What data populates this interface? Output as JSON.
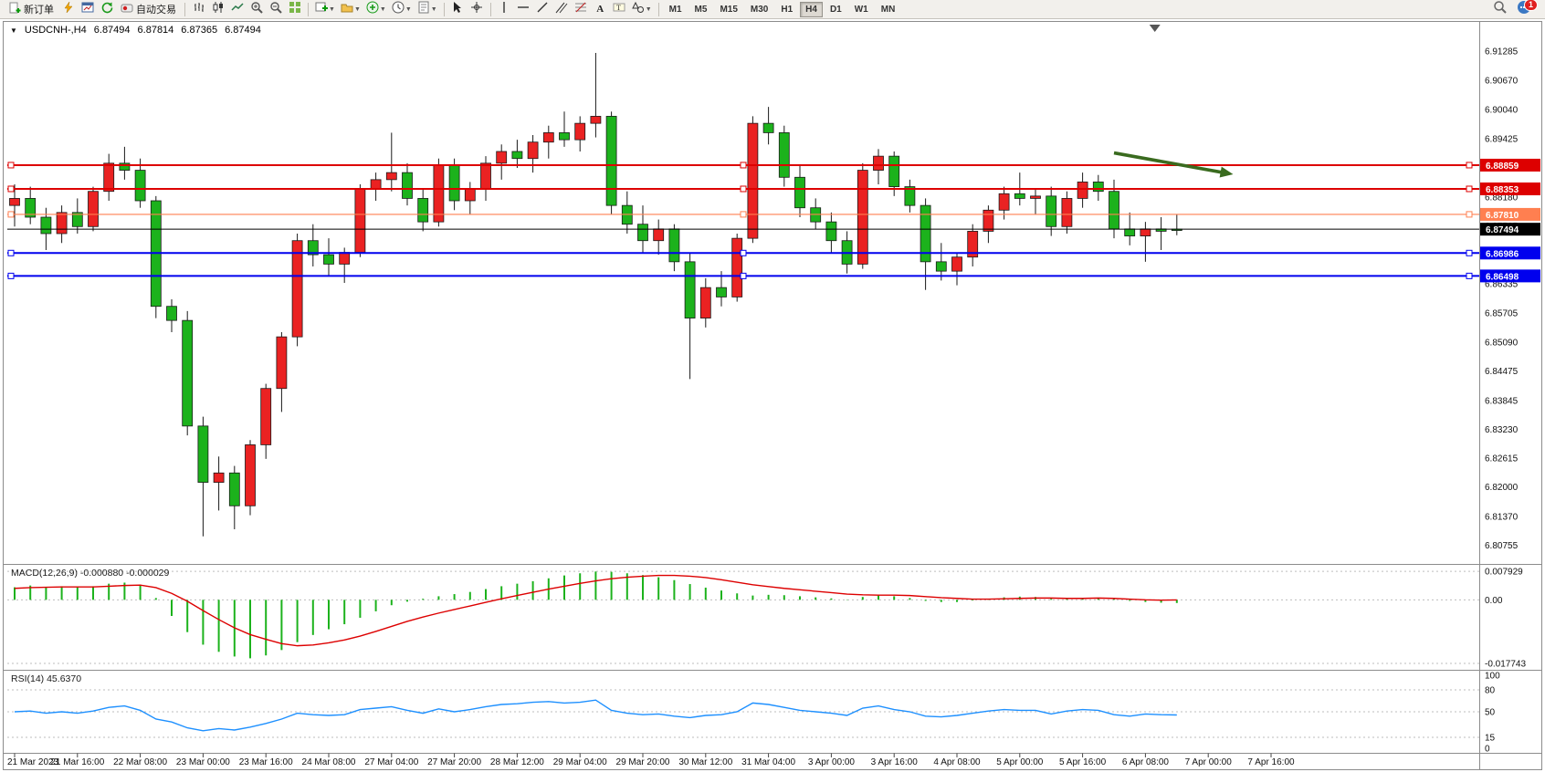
{
  "toolbar": {
    "new_order_label": "新订单",
    "autotrading_label": "自动交易",
    "timeframes": [
      "M1",
      "M5",
      "M15",
      "M30",
      "H1",
      "H4",
      "D1",
      "W1",
      "MN"
    ],
    "active_timeframe": "H4",
    "notification_count": "1"
  },
  "chart_header": {
    "symbol": "USDCNH-,H4",
    "open": "6.87494",
    "high": "6.87814",
    "low": "6.87365",
    "close": "6.87494"
  },
  "chart_data": {
    "type": "candlestick",
    "symbol": "USDCNH-",
    "timeframe": "H4",
    "up_color": "#ea2222",
    "down_color": "#1cb21c",
    "ylim": [
      6.804,
      6.916
    ],
    "price_axis_labels": [
      "6.91285",
      "6.90670",
      "6.90040",
      "6.89425",
      "6.88810",
      "6.88180",
      "6.87565",
      "6.86950",
      "6.86335",
      "6.85705",
      "6.85090",
      "6.84475",
      "6.83845",
      "6.83230",
      "6.82615",
      "6.82000",
      "6.81370",
      "6.80755"
    ],
    "candles": [
      [
        6.88,
        6.8845,
        6.8755,
        6.8815
      ],
      [
        6.8815,
        6.884,
        6.876,
        6.8775
      ],
      [
        6.8775,
        6.8795,
        6.8705,
        6.874
      ],
      [
        6.874,
        6.88,
        6.872,
        6.8785
      ],
      [
        6.8785,
        6.8815,
        6.874,
        6.8755
      ],
      [
        6.8755,
        6.884,
        6.8745,
        6.883
      ],
      [
        6.883,
        6.891,
        6.881,
        6.889
      ],
      [
        6.889,
        6.8925,
        6.8855,
        6.8875
      ],
      [
        6.8875,
        6.89,
        6.8795,
        6.881
      ],
      [
        6.881,
        6.882,
        6.856,
        6.8585
      ],
      [
        6.8585,
        6.86,
        6.853,
        6.8555
      ],
      [
        6.8555,
        6.8575,
        6.831,
        6.833
      ],
      [
        6.833,
        6.835,
        6.8095,
        6.821
      ],
      [
        6.821,
        6.8265,
        6.815,
        6.823
      ],
      [
        6.823,
        6.8245,
        6.811,
        6.816
      ],
      [
        6.816,
        6.83,
        6.814,
        6.829
      ],
      [
        6.829,
        6.842,
        6.826,
        6.841
      ],
      [
        6.841,
        6.853,
        6.836,
        6.852
      ],
      [
        6.852,
        6.874,
        6.85,
        6.8725
      ],
      [
        6.8725,
        6.876,
        6.867,
        6.8695
      ],
      [
        6.8695,
        6.873,
        6.865,
        6.8675
      ],
      [
        6.8675,
        6.871,
        6.8635,
        6.87
      ],
      [
        6.87,
        6.8845,
        6.869,
        6.8835
      ],
      [
        6.8835,
        6.887,
        6.881,
        6.8855
      ],
      [
        6.8855,
        6.8955,
        6.883,
        6.887
      ],
      [
        6.887,
        6.889,
        6.88,
        6.8815
      ],
      [
        6.8815,
        6.8835,
        6.8745,
        6.8765
      ],
      [
        6.8765,
        6.89,
        6.8755,
        6.8885
      ],
      [
        6.8885,
        6.89,
        6.879,
        6.881
      ],
      [
        6.881,
        6.885,
        6.878,
        6.8835
      ],
      [
        6.8835,
        6.8905,
        6.881,
        6.889
      ],
      [
        6.889,
        6.893,
        6.8855,
        6.8915
      ],
      [
        6.8915,
        6.894,
        6.888,
        6.89
      ],
      [
        6.89,
        6.895,
        6.887,
        6.8935
      ],
      [
        6.8935,
        6.897,
        6.89,
        6.8955
      ],
      [
        6.8955,
        6.9,
        6.8925,
        6.894
      ],
      [
        6.894,
        6.899,
        6.8915,
        6.8975
      ],
      [
        6.8975,
        6.9125,
        6.8945,
        6.899
      ],
      [
        6.899,
        6.9,
        6.878,
        6.88
      ],
      [
        6.88,
        6.883,
        6.874,
        6.876
      ],
      [
        6.876,
        6.88,
        6.87,
        6.8725
      ],
      [
        6.8725,
        6.877,
        6.8695,
        6.875
      ],
      [
        6.875,
        6.876,
        6.866,
        6.868
      ],
      [
        6.868,
        6.87,
        6.843,
        6.856
      ],
      [
        6.856,
        6.8645,
        6.854,
        6.8625
      ],
      [
        6.8625,
        6.866,
        6.8585,
        6.8605
      ],
      [
        6.8605,
        6.874,
        6.8595,
        6.873
      ],
      [
        6.873,
        6.899,
        6.872,
        6.8975
      ],
      [
        6.8975,
        6.901,
        6.893,
        6.8955
      ],
      [
        6.8955,
        6.897,
        6.884,
        6.886
      ],
      [
        6.886,
        6.8885,
        6.8775,
        6.8795
      ],
      [
        6.8795,
        6.8815,
        6.875,
        6.8765
      ],
      [
        6.8765,
        6.8785,
        6.87,
        6.8725
      ],
      [
        6.8725,
        6.8745,
        6.8655,
        6.8675
      ],
      [
        6.8675,
        6.889,
        6.8665,
        6.8875
      ],
      [
        6.8875,
        6.892,
        6.8845,
        6.8905
      ],
      [
        6.8905,
        6.8915,
        6.882,
        6.884
      ],
      [
        6.884,
        6.8855,
        6.8785,
        6.88
      ],
      [
        6.88,
        6.8815,
        6.862,
        6.868
      ],
      [
        6.868,
        6.872,
        6.864,
        6.866
      ],
      [
        6.866,
        6.87,
        6.863,
        6.869
      ],
      [
        6.869,
        6.876,
        6.867,
        6.8745
      ],
      [
        6.8745,
        6.88,
        6.872,
        6.879
      ],
      [
        6.879,
        6.884,
        6.877,
        6.8825
      ],
      [
        6.8825,
        6.887,
        6.88,
        6.8815
      ],
      [
        6.8815,
        6.8835,
        6.878,
        6.882
      ],
      [
        6.882,
        6.884,
        6.8735,
        6.8755
      ],
      [
        6.8755,
        6.883,
        6.874,
        6.8815
      ],
      [
        6.8815,
        6.887,
        6.8795,
        6.885
      ],
      [
        6.885,
        6.8865,
        6.881,
        6.883
      ],
      [
        6.883,
        6.8855,
        6.873,
        6.875
      ],
      [
        6.875,
        6.8785,
        6.8715,
        6.8735
      ],
      [
        6.8735,
        6.8765,
        6.868,
        6.875
      ],
      [
        6.875,
        6.8775,
        6.8705,
        6.8745
      ],
      [
        6.87494,
        6.87814,
        6.87365,
        6.87494
      ]
    ],
    "hlines": [
      {
        "price": 6.88859,
        "label": "6.88859",
        "color": "#dd0000",
        "width": 2,
        "handles": true
      },
      {
        "price": 6.88353,
        "label": "6.88353",
        "color": "#dd0000",
        "width": 2,
        "handles": true
      },
      {
        "price": 6.8781,
        "label": "6.87810",
        "color": "#ff7f50",
        "width": 1.2,
        "handles": true
      },
      {
        "price": 6.87494,
        "label": "6.87494",
        "color": "#000000",
        "width": 1,
        "handles": false
      },
      {
        "price": 6.86986,
        "label": "6.86986",
        "color": "#0000ee",
        "width": 2,
        "handles": true
      },
      {
        "price": 6.86498,
        "label": "6.86498",
        "color": "#0000ee",
        "width": 2,
        "handles": true
      }
    ],
    "trend_arrow": {
      "from_index": 70,
      "from_price": 6.8912,
      "to_index": 77.3,
      "to_price": 6.8868,
      "color": "#3a6b1f"
    },
    "shift_marker_index": 72.6,
    "indicators": [
      {
        "name": "MACD",
        "label": "MACD(12,26,9) -0.000880 -0.000029",
        "axis_labels": [
          {
            "text": "0.007929",
            "value": 0.007929
          },
          {
            "text": "0.00",
            "value": 0
          },
          {
            "text": "-0.017743",
            "value": -0.017743
          }
        ],
        "ylim": [
          -0.019,
          0.0095
        ],
        "hist_color": "#1cb21c",
        "signal_color": "#dd0000",
        "histogram": [
          0.0035,
          0.004,
          0.0036,
          0.0038,
          0.0035,
          0.0038,
          0.0045,
          0.0048,
          0.0042,
          0.0005,
          -0.0045,
          -0.009,
          -0.0125,
          -0.0145,
          -0.0158,
          -0.0163,
          -0.0155,
          -0.014,
          -0.0118,
          -0.0098,
          -0.0082,
          -0.0068,
          -0.005,
          -0.0032,
          -0.0015,
          -0.0005,
          0.0003,
          0.001,
          0.0016,
          0.0022,
          0.003,
          0.0038,
          0.0045,
          0.0052,
          0.006,
          0.0068,
          0.0074,
          0.0079,
          0.0078,
          0.0074,
          0.0069,
          0.0063,
          0.0055,
          0.0044,
          0.0034,
          0.0026,
          0.0018,
          0.0012,
          0.0014,
          0.0013,
          0.001,
          0.0007,
          0.0004,
          0.0001,
          0.0008,
          0.0012,
          0.001,
          0.0005,
          -0.0003,
          -0.0006,
          -0.0006,
          -0.0002,
          0.0003,
          0.0007,
          0.0009,
          0.0008,
          0.0003,
          0.0002,
          0.0005,
          0.0006,
          0.0002,
          -0.0003,
          -0.0006,
          -0.0008,
          -0.00088
        ],
        "signal": [
          0.0032,
          0.0034,
          0.0035,
          0.0036,
          0.0036,
          0.0036,
          0.0038,
          0.004,
          0.0041,
          0.0034,
          0.0018,
          -0.0004,
          -0.003,
          -0.0055,
          -0.0078,
          -0.0097,
          -0.011,
          -0.0122,
          -0.0128,
          -0.0126,
          -0.012,
          -0.0112,
          -0.0101,
          -0.0088,
          -0.0074,
          -0.006,
          -0.0048,
          -0.0037,
          -0.0027,
          -0.0017,
          -0.0007,
          0.0003,
          0.0012,
          0.0021,
          0.003,
          0.0038,
          0.0046,
          0.0053,
          0.0059,
          0.0063,
          0.0066,
          0.0068,
          0.0068,
          0.0066,
          0.0062,
          0.0056,
          0.0049,
          0.0042,
          0.0037,
          0.0032,
          0.0028,
          0.0024,
          0.002,
          0.0016,
          0.0014,
          0.0013,
          0.0013,
          0.0012,
          0.0009,
          0.0006,
          0.0004,
          0.0002,
          0.0002,
          0.0003,
          0.0004,
          0.0005,
          0.0005,
          0.0004,
          0.0004,
          0.0005,
          0.0004,
          0.0002,
          0.0,
          -0.0001,
          -2.9e-05
        ]
      },
      {
        "name": "RSI",
        "label": "RSI(14) 45.6370",
        "axis_labels": [
          {
            "text": "100",
            "value": 100
          },
          {
            "text": "80",
            "value": 80
          },
          {
            "text": "50",
            "value": 50
          },
          {
            "text": "15",
            "value": 15
          },
          {
            "text": "0",
            "value": 0
          }
        ],
        "levels": [
          80,
          50,
          15
        ],
        "ylim": [
          0,
          100
        ],
        "color": "#1e90ff",
        "values": [
          50,
          51,
          48,
          50,
          48,
          51,
          56,
          58,
          52,
          40,
          36,
          28,
          24,
          27,
          25,
          29,
          34,
          40,
          48,
          46,
          45,
          46,
          53,
          55,
          57,
          52,
          48,
          54,
          50,
          53,
          57,
          60,
          61,
          63,
          64,
          62,
          63,
          66,
          52,
          48,
          46,
          47,
          44,
          42,
          45,
          46,
          50,
          62,
          60,
          56,
          52,
          50,
          48,
          45,
          55,
          58,
          53,
          50,
          44,
          43,
          45,
          48,
          51,
          53,
          52,
          52,
          47,
          51,
          53,
          52,
          46,
          44,
          47,
          46,
          45.637
        ]
      }
    ],
    "time_axis": {
      "step": 4,
      "labels": [
        "21 Mar 2023",
        "21 Mar 16:00",
        "22 Mar 08:00",
        "23 Mar 00:00",
        "23 Mar 16:00",
        "24 Mar 08:00",
        "27 Mar 04:00",
        "27 Mar 20:00",
        "28 Mar 12:00",
        "29 Mar 04:00",
        "29 Mar 20:00",
        "30 Mar 12:00",
        "31 Mar 04:00",
        "3 Apr 00:00",
        "3 Apr 16:00",
        "4 Apr 08:00",
        "5 Apr 00:00",
        "5 Apr 16:00",
        "6 Apr 08:00",
        "7 Apr 00:00",
        "7 Apr 16:00"
      ]
    }
  }
}
